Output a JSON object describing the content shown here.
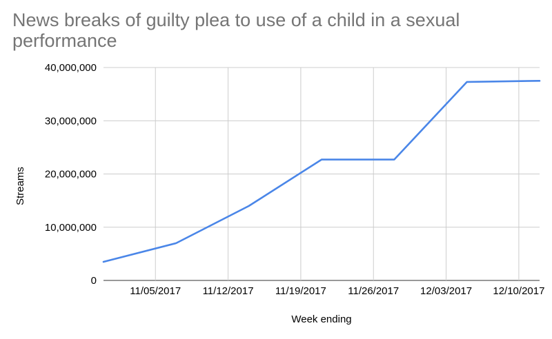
{
  "chart_data": {
    "type": "line",
    "title": "News breaks of guilty plea to use of a child in a sexual performance",
    "xlabel": "Week ending",
    "ylabel": "Streams",
    "x_ticks": [
      "11/05/2017",
      "11/12/2017",
      "11/19/2017",
      "11/26/2017",
      "12/03/2017",
      "12/10/2017"
    ],
    "y_ticks": [
      "0",
      "10,000,000",
      "20,000,000",
      "30,000,000",
      "40,000,000"
    ],
    "ylim": [
      0,
      40000000
    ],
    "x": [
      "10/31/2017",
      "11/07/2017",
      "11/14/2017",
      "11/21/2017",
      "11/28/2017",
      "12/05/2017",
      "12/12/2017"
    ],
    "series": [
      {
        "values": [
          3500000,
          7000000,
          14000000,
          22700000,
          22700000,
          37300000,
          37500000
        ],
        "color": "#4a86e8"
      }
    ],
    "grid": true,
    "legend": "none"
  }
}
